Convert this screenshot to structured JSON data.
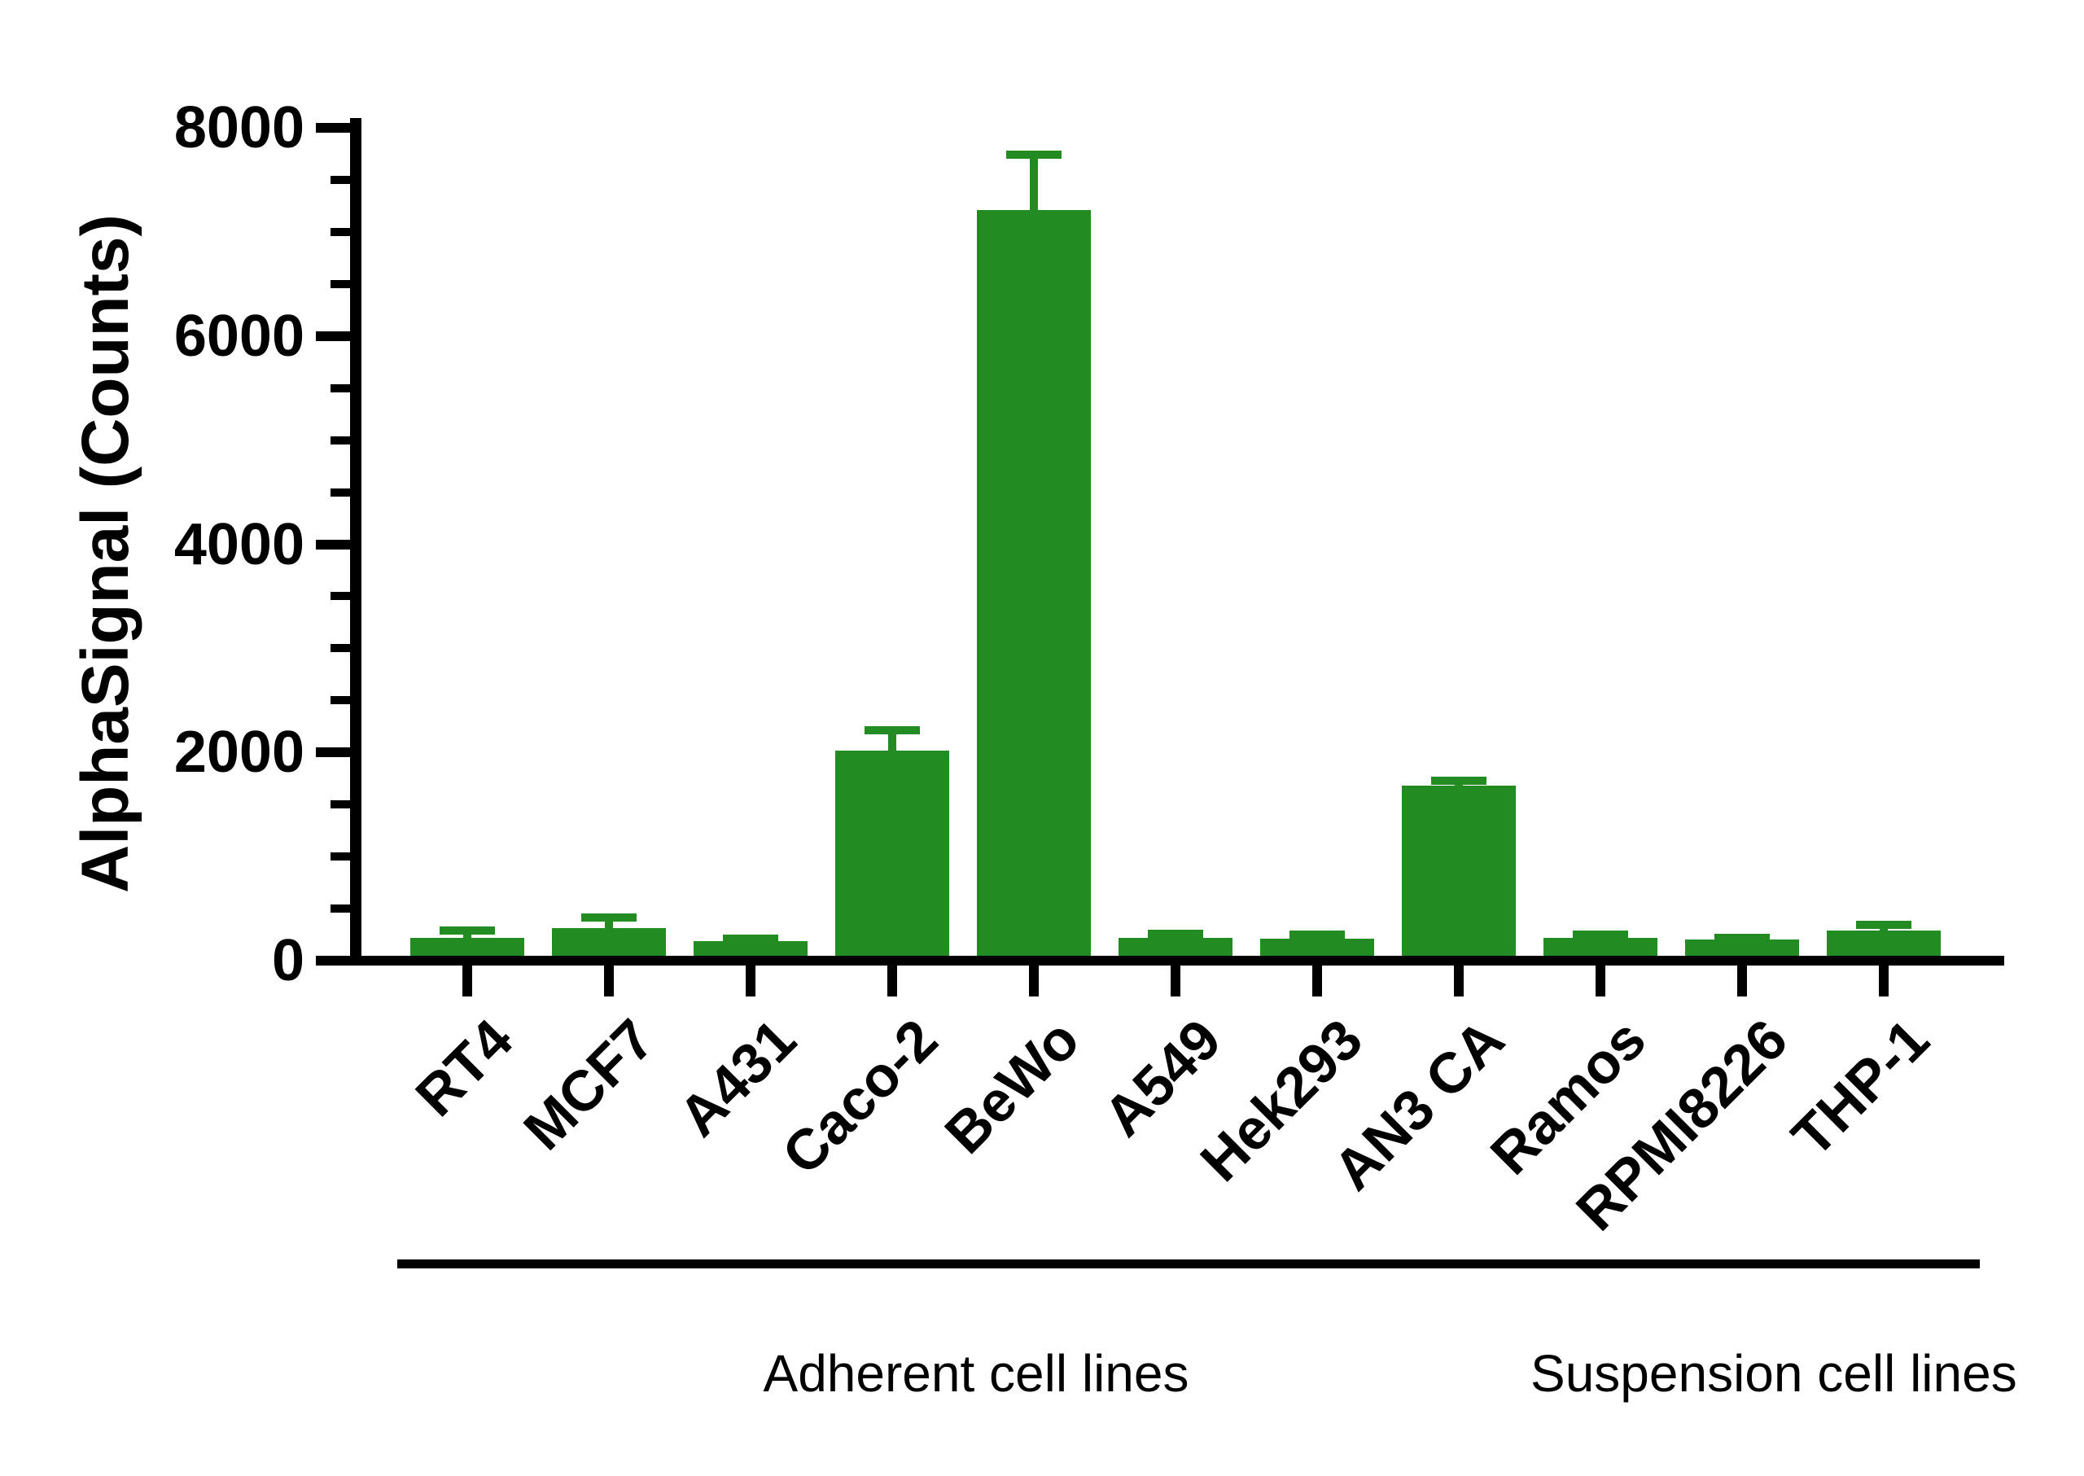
{
  "chart_data": {
    "type": "bar",
    "title": "",
    "xlabel": "",
    "ylabel": "AlphaSignal (Counts)",
    "ylim": [
      0,
      8000
    ],
    "yticks": [
      0,
      2000,
      4000,
      6000,
      8000
    ],
    "y_minor_tick_step": 500,
    "grid": false,
    "legend": null,
    "bar_color": "#228B22",
    "axis_color": "#000000",
    "categories": [
      "RT4",
      "MCF7",
      "A431",
      "Caco-2",
      "BeWo",
      "A549",
      "Hek293",
      "AN3 CA",
      "Ramos",
      "RPMI8226",
      "THP-1"
    ],
    "values": [
      220,
      315,
      190,
      2020,
      7210,
      220,
      210,
      1680,
      220,
      200,
      290
    ],
    "error_top": [
      330,
      450,
      250,
      2250,
      7780,
      295,
      290,
      1770,
      290,
      255,
      380
    ],
    "error_type": "upper SD",
    "groups": [
      {
        "label": "Adherent cell lines",
        "start_index": 0,
        "end_index": 7
      },
      {
        "label": "Suspension cell lines",
        "start_index": 8,
        "end_index": 10
      }
    ]
  }
}
